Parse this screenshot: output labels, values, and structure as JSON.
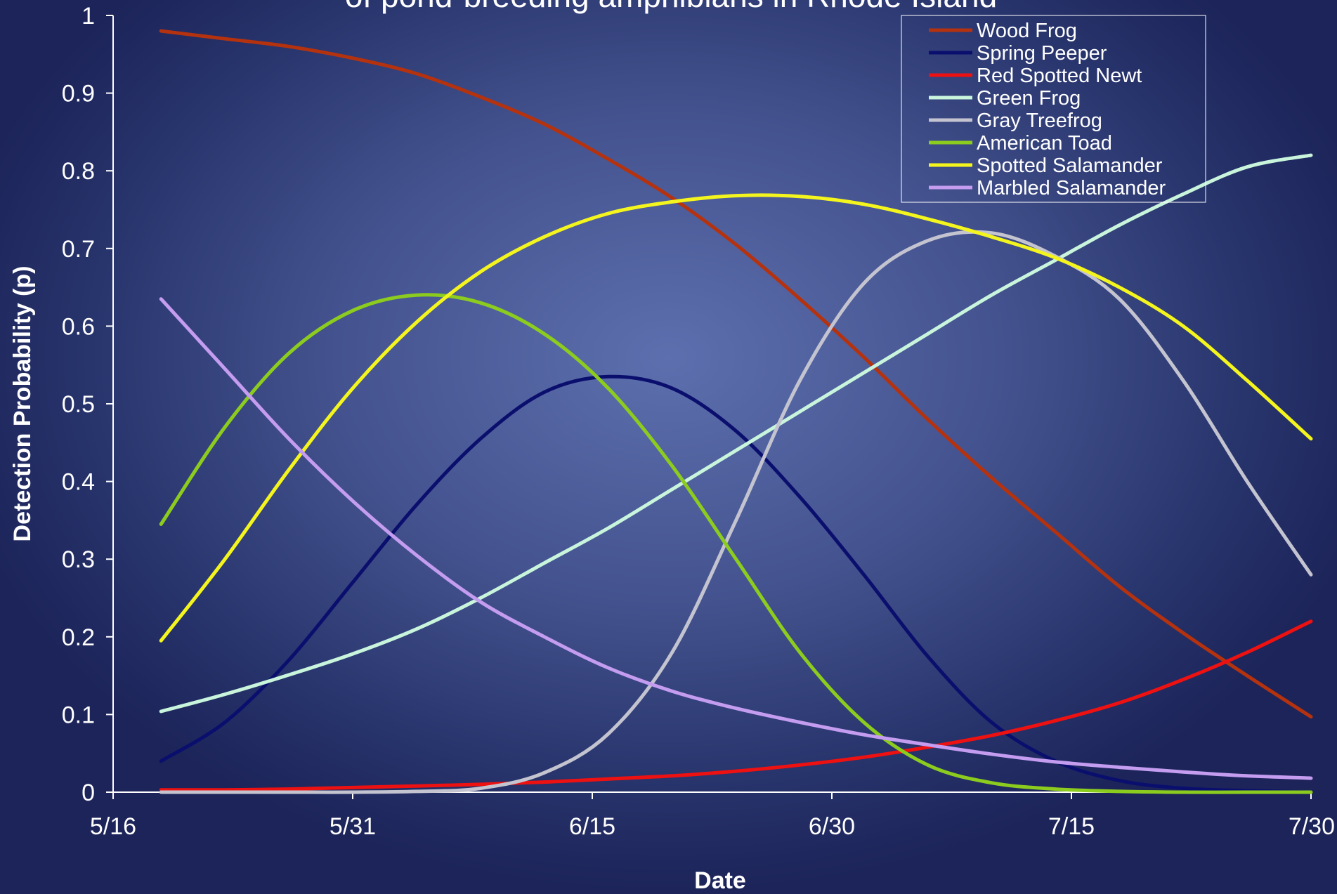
{
  "chart_data": {
    "type": "line",
    "title": "of pond-breeding amphibians in Rhode Island",
    "xlabel": "Date",
    "ylabel": "Detection Probability (p)",
    "xlim": [
      "5/16",
      "7/30"
    ],
    "x_ticks": [
      "5/16",
      "5/31",
      "6/15",
      "6/30",
      "7/15",
      "7/30"
    ],
    "ylim": [
      0,
      1
    ],
    "y_ticks": [
      "0",
      "0.1",
      "0.2",
      "0.3",
      "0.4",
      "0.5",
      "0.6",
      "0.7",
      "0.8",
      "0.9",
      "1"
    ],
    "grid": false,
    "legend": "top-right",
    "x": [
      "5/19",
      "5/23",
      "5/27",
      "5/31",
      "6/4",
      "6/8",
      "6/12",
      "6/16",
      "6/20",
      "6/24",
      "6/28",
      "7/2",
      "7/6",
      "7/10",
      "7/14",
      "7/18",
      "7/22",
      "7/26",
      "7/30"
    ],
    "series": [
      {
        "name": "Wood Frog",
        "color": "#b5320f",
        "values": [
          0.98,
          0.97,
          0.96,
          0.945,
          0.925,
          0.895,
          0.86,
          0.815,
          0.765,
          0.705,
          0.635,
          0.56,
          0.48,
          0.405,
          0.335,
          0.265,
          0.205,
          0.15,
          0.097
        ]
      },
      {
        "name": "Spring Peeper",
        "color": "#0a0f6e",
        "values": [
          0.04,
          0.09,
          0.17,
          0.27,
          0.37,
          0.455,
          0.515,
          0.535,
          0.52,
          0.465,
          0.38,
          0.28,
          0.175,
          0.09,
          0.04,
          0.015,
          0.005,
          0.002,
          0.0
        ]
      },
      {
        "name": "Red Spotted Newt",
        "color": "#ee1111",
        "values": [
          0.003,
          0.003,
          0.004,
          0.006,
          0.008,
          0.01,
          0.013,
          0.017,
          0.021,
          0.027,
          0.035,
          0.045,
          0.058,
          0.073,
          0.092,
          0.115,
          0.145,
          0.18,
          0.22
        ]
      },
      {
        "name": "Green Frog",
        "color": "#c8f5dc",
        "values": [
          0.104,
          0.126,
          0.151,
          0.178,
          0.21,
          0.25,
          0.295,
          0.34,
          0.39,
          0.44,
          0.49,
          0.54,
          0.59,
          0.64,
          0.685,
          0.73,
          0.77,
          0.805,
          0.82
        ]
      },
      {
        "name": "Gray Treefrog",
        "color": "#c4c4d0",
        "values": [
          0.0,
          0.0,
          0.0,
          0.0,
          0.001,
          0.005,
          0.025,
          0.075,
          0.18,
          0.35,
          0.53,
          0.655,
          0.71,
          0.72,
          0.69,
          0.635,
          0.53,
          0.4,
          0.28
        ]
      },
      {
        "name": "American Toad",
        "color": "#8ccc1e",
        "values": [
          0.345,
          0.47,
          0.565,
          0.62,
          0.64,
          0.63,
          0.59,
          0.52,
          0.42,
          0.3,
          0.18,
          0.09,
          0.035,
          0.012,
          0.004,
          0.001,
          0.0,
          0.0,
          0.0
        ]
      },
      {
        "name": "Spotted Salamander",
        "color": "#f5f51e",
        "values": [
          0.195,
          0.3,
          0.415,
          0.52,
          0.605,
          0.67,
          0.715,
          0.745,
          0.76,
          0.768,
          0.767,
          0.757,
          0.738,
          0.715,
          0.688,
          0.65,
          0.6,
          0.53,
          0.455
        ]
      },
      {
        "name": "Marbled Salamander",
        "color": "#c49cf0",
        "values": [
          0.635,
          0.545,
          0.455,
          0.375,
          0.305,
          0.245,
          0.2,
          0.16,
          0.13,
          0.108,
          0.09,
          0.074,
          0.061,
          0.049,
          0.039,
          0.032,
          0.026,
          0.021,
          0.018
        ]
      }
    ]
  }
}
